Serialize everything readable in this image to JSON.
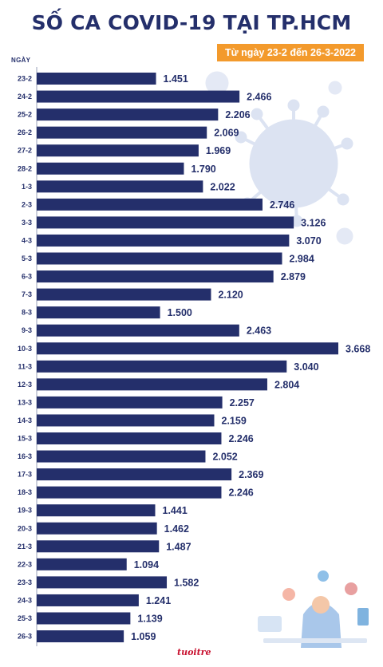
{
  "header": {
    "title": "SỐ CA COVID-19 TẠI TP.HCM",
    "subtitle": "Từ ngày 23-2 đến 26-3-2022"
  },
  "logo": {
    "text": "tuoitre"
  },
  "colors": {
    "bar": "#242f6b",
    "accent": "#f39a2c",
    "virus": "#dce3f2"
  },
  "chart_data": {
    "type": "bar",
    "orientation": "horizontal",
    "title": "SỐ CA COVID-19 TẠI TP.HCM",
    "subtitle": "Từ ngày 23-2 đến 26-3-2022",
    "ylabel": "NGÀY",
    "xlabel": "",
    "xlim": [
      0,
      3668
    ],
    "grid": false,
    "categories": [
      "23-2",
      "24-2",
      "25-2",
      "26-2",
      "27-2",
      "28-2",
      "1-3",
      "2-3",
      "3-3",
      "4-3",
      "5-3",
      "6-3",
      "7-3",
      "8-3",
      "9-3",
      "10-3",
      "11-3",
      "12-3",
      "13-3",
      "14-3",
      "15-3",
      "16-3",
      "17-3",
      "18-3",
      "19-3",
      "20-3",
      "21-3",
      "22-3",
      "23-3",
      "24-3",
      "25-3",
      "26-3"
    ],
    "values": [
      1451,
      2466,
      2206,
      2069,
      1969,
      1790,
      2022,
      2746,
      3126,
      3070,
      2984,
      2879,
      2120,
      1500,
      2463,
      3668,
      3040,
      2804,
      2257,
      2159,
      2246,
      2052,
      2369,
      2246,
      1441,
      1462,
      1487,
      1094,
      1582,
      1241,
      1139,
      1059
    ],
    "value_labels": [
      "1.451",
      "2.466",
      "2.206",
      "2.069",
      "1.969",
      "1.790",
      "2.022",
      "2.746",
      "3.126",
      "3.070",
      "2.984",
      "2.879",
      "2.120",
      "1.500",
      "2.463",
      "3.668",
      "3.040",
      "2.804",
      "2.257",
      "2.159",
      "2.246",
      "2.052",
      "2.369",
      "2.246",
      "1.441",
      "1.462",
      "1.487",
      "1.094",
      "1.582",
      "1.241",
      "1.139",
      "1.059"
    ]
  }
}
